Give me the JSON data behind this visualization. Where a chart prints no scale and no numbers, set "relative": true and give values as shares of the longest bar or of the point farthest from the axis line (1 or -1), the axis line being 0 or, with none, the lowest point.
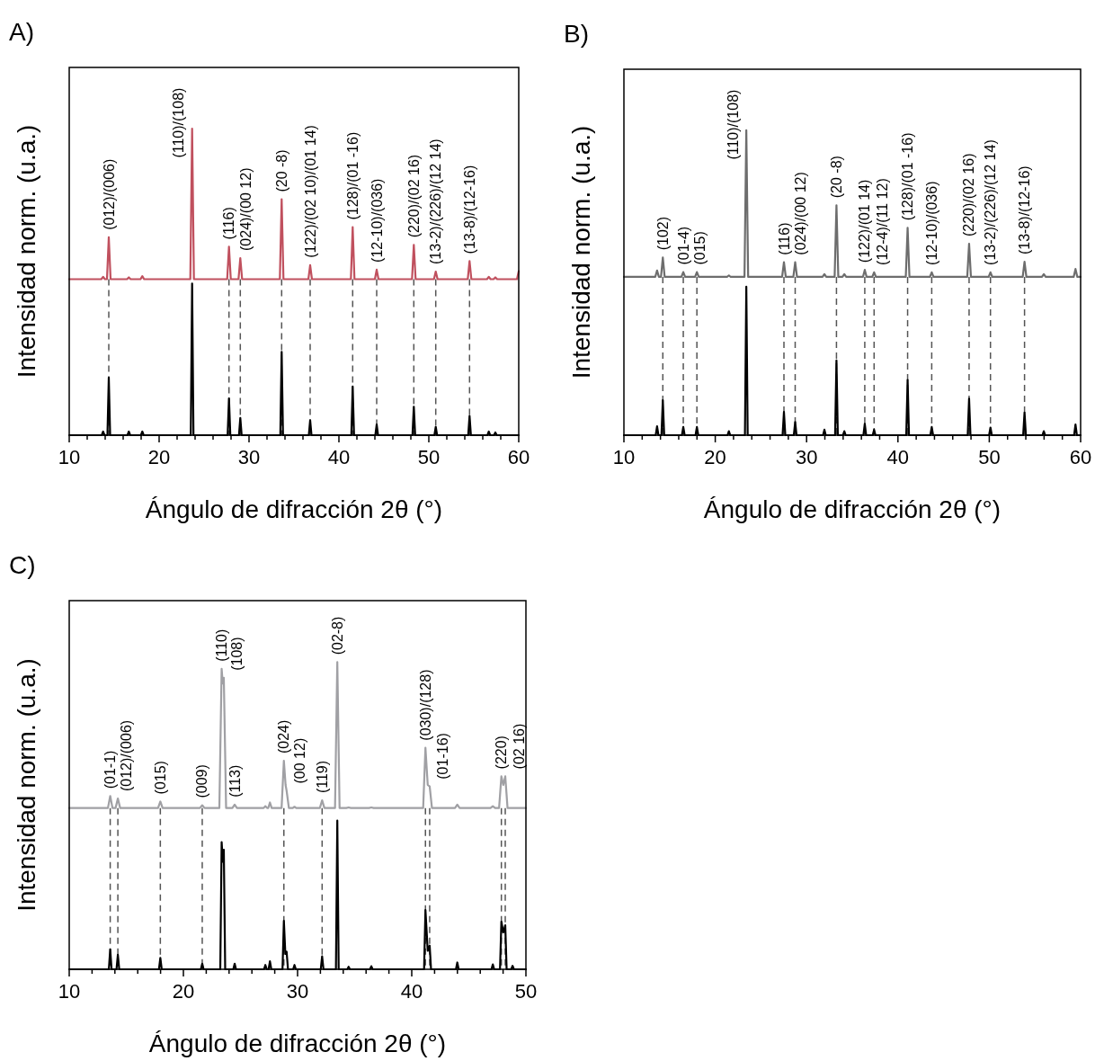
{
  "chart_data": [
    {
      "type": "line",
      "title": "A)",
      "xlabel": "Ángulo de difracción 2θ (°)",
      "ylabel": "Intensidad norm. (u.a.)",
      "relative": true,
      "xlim": [
        10,
        60
      ],
      "xticks": [
        10,
        {
          "value": 12,
          "label": null
        },
        {
          "value": 14,
          "label": null
        },
        {
          "value": 16,
          "label": null
        },
        {
          "value": 18,
          "label": null
        },
        20,
        {
          "value": 22,
          "label": null
        },
        {
          "value": 24,
          "label": null
        },
        {
          "value": 26,
          "label": null
        },
        {
          "value": 28,
          "label": null
        },
        30,
        {
          "value": 32,
          "label": null
        },
        {
          "value": 34,
          "label": null
        },
        {
          "value": 36,
          "label": null
        },
        {
          "value": 38,
          "label": null
        },
        40,
        {
          "value": 42,
          "label": null
        },
        {
          "value": 44,
          "label": null
        },
        {
          "value": 46,
          "label": null
        },
        {
          "value": 48,
          "label": null
        },
        50,
        {
          "value": 52,
          "label": null
        },
        {
          "value": 54,
          "label": null
        },
        {
          "value": 56,
          "label": null
        },
        {
          "value": 58,
          "label": null
        },
        60
      ],
      "series": [
        {
          "color": "#c0505e",
          "x": [
            10,
            13.57,
            13.77,
            13.97,
            14.2,
            14.4,
            14.6,
            16.43,
            16.63,
            16.83,
            17.93,
            18.13,
            18.33,
            23.47,
            23.67,
            23.87,
            27.57,
            27.77,
            27.97,
            28.83,
            29.03,
            29.23,
            33.43,
            33.63,
            33.83,
            36.6,
            36.8,
            37.0,
            41.33,
            41.53,
            41.73,
            44.0,
            44.2,
            44.4,
            48.13,
            48.33,
            48.53,
            50.57,
            50.77,
            50.97,
            54.33,
            54.53,
            54.73,
            56.47,
            56.67,
            56.87,
            57.2,
            57.4,
            57.6,
            59.8,
            60
          ],
          "values": [
            0.509,
            0.509,
            0.517,
            0.509,
            0.509,
            0.646,
            0.509,
            0.509,
            0.515,
            0.509,
            0.509,
            0.519,
            0.509,
            0.509,
            1,
            0.509,
            0.509,
            0.615,
            0.509,
            0.509,
            0.578,
            0.509,
            0.509,
            0.77,
            0.509,
            0.509,
            0.555,
            0.509,
            0.509,
            0.679,
            0.509,
            0.509,
            0.54,
            0.509,
            0.509,
            0.621,
            0.509,
            0.509,
            0.534,
            0.509,
            0.509,
            0.568,
            0.509,
            0.509,
            0.517,
            0.509,
            0.509,
            0.515,
            0.509,
            0.509,
            0.535
          ]
        },
        {
          "color": "#000000",
          "x": [
            10,
            13.62,
            13.77,
            13.92,
            14.25,
            14.4,
            14.55,
            16.48,
            16.63,
            16.78,
            17.98,
            18.13,
            18.28,
            23.52,
            23.67,
            23.82,
            27.62,
            27.77,
            27.92,
            28.88,
            29.03,
            29.18,
            33.48,
            33.63,
            33.78,
            36.65,
            36.8,
            36.95,
            41.38,
            41.53,
            41.68,
            44.05,
            44.2,
            44.35,
            48.18,
            48.33,
            48.48,
            50.62,
            50.77,
            50.92,
            54.38,
            54.53,
            54.68,
            56.52,
            56.67,
            56.82,
            57.25,
            57.4,
            57.55,
            60
          ],
          "values": [
            0,
            0,
            0.012,
            0,
            0,
            0.188,
            0,
            0,
            0.012,
            0,
            0,
            0.012,
            0,
            0,
            0.495,
            0,
            0,
            0.12,
            0,
            0,
            0.056,
            0,
            0,
            0.272,
            0,
            0,
            0.049,
            0,
            0,
            0.159,
            0,
            0,
            0.035,
            0,
            0,
            0.093,
            0,
            0,
            0.027,
            0,
            0,
            0.063,
            0,
            0,
            0.012,
            0,
            0,
            0.009,
            0,
            0
          ]
        }
      ],
      "ref_lines": [
        {
          "axis": "x",
          "value": 14.4,
          "line_style": "dashed",
          "color": "#555555"
        },
        {
          "axis": "x",
          "value": 27.77,
          "line_style": "dashed",
          "color": "#555555"
        },
        {
          "axis": "x",
          "value": 29.03,
          "line_style": "dashed",
          "color": "#555555"
        },
        {
          "axis": "x",
          "value": 33.63,
          "line_style": "dashed",
          "color": "#555555"
        },
        {
          "axis": "x",
          "value": 36.8,
          "line_style": "dashed",
          "color": "#555555"
        },
        {
          "axis": "x",
          "value": 41.53,
          "line_style": "dashed",
          "color": "#555555"
        },
        {
          "axis": "x",
          "value": 44.2,
          "line_style": "dashed",
          "color": "#555555"
        },
        {
          "axis": "x",
          "value": 48.33,
          "line_style": "dashed",
          "color": "#555555"
        },
        {
          "axis": "x",
          "value": 50.77,
          "line_style": "dashed",
          "color": "#555555"
        },
        {
          "axis": "x",
          "value": 54.53,
          "line_style": "dashed",
          "color": "#555555"
        }
      ],
      "annotations": [
        {
          "text": "(012)/(006)",
          "x": 14.4,
          "y": 0.646
        },
        {
          "text": "(110)/(108)",
          "x": 23.67,
          "y": 1
        },
        {
          "text": "(116)",
          "x": 27.77,
          "y": 0.615
        },
        {
          "text": "(024)/(00 12)",
          "x": 29.03,
          "y": 0.578
        },
        {
          "text": "(20 -8)",
          "x": 33.63,
          "y": 0.77
        },
        {
          "text": "(122)/(02 10)/(01 14)",
          "x": 36.8,
          "y": 0.555
        },
        {
          "text": "(128)/(01 -16)",
          "x": 41.53,
          "y": 0.679
        },
        {
          "text": "(12-10)/(036)",
          "x": 44.2,
          "y": 0.54
        },
        {
          "text": "(220)/(02 16)",
          "x": 48.33,
          "y": 0.621
        },
        {
          "text": "(13-2)/(226)/(12 14)",
          "x": 50.77,
          "y": 0.534
        },
        {
          "text": "(13-8)/(12-16)",
          "x": 54.53,
          "y": 0.568
        }
      ]
    },
    {
      "type": "line",
      "title": "B)",
      "xlabel": "Ángulo de difracción 2θ (°)",
      "ylabel": "Intensidad norm. (u.a.)",
      "relative": true,
      "xlim": [
        10,
        60
      ],
      "xticks": [
        10,
        {
          "value": 12,
          "label": null
        },
        {
          "value": 14,
          "label": null
        },
        {
          "value": 16,
          "label": null
        },
        {
          "value": 18,
          "label": null
        },
        20,
        {
          "value": 22,
          "label": null
        },
        {
          "value": 24,
          "label": null
        },
        {
          "value": 26,
          "label": null
        },
        {
          "value": 28,
          "label": null
        },
        30,
        {
          "value": 32,
          "label": null
        },
        {
          "value": 34,
          "label": null
        },
        {
          "value": 36,
          "label": null
        },
        {
          "value": 38,
          "label": null
        },
        40,
        {
          "value": 42,
          "label": null
        },
        {
          "value": 44,
          "label": null
        },
        {
          "value": 46,
          "label": null
        },
        {
          "value": 48,
          "label": null
        },
        50,
        {
          "value": 52,
          "label": null
        },
        {
          "value": 54,
          "label": null
        },
        {
          "value": 56,
          "label": null
        },
        {
          "value": 58,
          "label": null
        },
        60
      ],
      "series": [
        {
          "color": "#6d6d6d",
          "x": [
            10,
            13.43,
            13.63,
            13.83,
            14.06,
            14.26,
            14.46,
            16.3,
            16.5,
            16.7,
            17.79,
            17.99,
            18.19,
            21.29,
            21.49,
            21.69,
            23.2,
            23.4,
            23.6,
            27.32,
            27.52,
            27.72,
            28.55,
            28.75,
            28.95,
            31.75,
            31.95,
            32.15,
            33.07,
            33.27,
            33.47,
            33.93,
            34.13,
            34.33,
            36.17,
            36.37,
            36.57,
            37.19,
            37.39,
            37.59,
            40.86,
            41.06,
            41.26,
            43.5,
            43.7,
            43.9,
            47.59,
            47.79,
            47.99,
            49.93,
            50.13,
            50.33,
            53.66,
            53.86,
            54.06,
            55.77,
            55.97,
            56.17,
            59.24,
            59.44,
            59.64,
            60
          ],
          "values": [
            0.519,
            0.519,
            0.54,
            0.519,
            0.519,
            0.583,
            0.519,
            0.519,
            0.535,
            0.519,
            0.519,
            0.535,
            0.519,
            0.519,
            0.524,
            0.519,
            0.519,
            1,
            0.519,
            0.519,
            0.567,
            0.519,
            0.519,
            0.567,
            0.519,
            0.519,
            0.528,
            0.519,
            0.519,
            0.754,
            0.519,
            0.519,
            0.528,
            0.519,
            0.519,
            0.542,
            0.519,
            0.519,
            0.534,
            0.519,
            0.519,
            0.68,
            0.519,
            0.519,
            0.534,
            0.519,
            0.519,
            0.628,
            0.519,
            0.519,
            0.534,
            0.519,
            0.519,
            0.569,
            0.519,
            0.519,
            0.528,
            0.519,
            0.519,
            0.545,
            0.519,
            0.519
          ]
        },
        {
          "color": "#000000",
          "x": [
            10,
            13.48,
            13.63,
            13.78,
            14.11,
            14.26,
            14.41,
            16.35,
            16.5,
            16.65,
            17.84,
            17.99,
            18.14,
            21.34,
            21.49,
            21.64,
            23.25,
            23.4,
            23.55,
            27.37,
            27.52,
            27.67,
            28.6,
            28.75,
            28.9,
            31.8,
            31.95,
            32.1,
            33.12,
            33.27,
            33.42,
            33.98,
            34.13,
            34.28,
            36.22,
            36.37,
            36.52,
            37.24,
            37.39,
            37.54,
            40.91,
            41.06,
            41.21,
            43.55,
            43.7,
            43.85,
            47.64,
            47.79,
            47.94,
            49.98,
            50.13,
            50.28,
            53.71,
            53.86,
            54.01,
            55.82,
            55.97,
            56.12,
            59.29,
            59.44,
            59.59,
            60
          ],
          "values": [
            0,
            0,
            0.029,
            0,
            0,
            0.115,
            0,
            0,
            0.027,
            0,
            0,
            0.027,
            0,
            0,
            0.013,
            0,
            0,
            0.487,
            0,
            0,
            0.076,
            0,
            0,
            0.043,
            0,
            0,
            0.018,
            0,
            0,
            0.245,
            0,
            0,
            0.013,
            0,
            0,
            0.037,
            0,
            0,
            0.018,
            0,
            0,
            0.181,
            0,
            0,
            0.027,
            0,
            0,
            0.12,
            0,
            0,
            0.025,
            0,
            0,
            0.074,
            0,
            0,
            0.013,
            0,
            0,
            0.035,
            0,
            0
          ]
        }
      ],
      "ref_lines": [
        {
          "axis": "x",
          "value": 14.26,
          "line_style": "dashed",
          "color": "#555555"
        },
        {
          "axis": "x",
          "value": 16.5,
          "line_style": "dashed",
          "color": "#555555"
        },
        {
          "axis": "x",
          "value": 17.99,
          "line_style": "dashed",
          "color": "#555555"
        },
        {
          "axis": "x",
          "value": 27.52,
          "line_style": "dashed",
          "color": "#555555"
        },
        {
          "axis": "x",
          "value": 28.75,
          "line_style": "dashed",
          "color": "#555555"
        },
        {
          "axis": "x",
          "value": 33.27,
          "line_style": "dashed",
          "color": "#555555"
        },
        {
          "axis": "x",
          "value": 36.37,
          "line_style": "dashed",
          "color": "#555555"
        },
        {
          "axis": "x",
          "value": 37.39,
          "line_style": "dashed",
          "color": "#555555"
        },
        {
          "axis": "x",
          "value": 41.06,
          "line_style": "dashed",
          "color": "#555555"
        },
        {
          "axis": "x",
          "value": 43.7,
          "line_style": "dashed",
          "color": "#555555"
        },
        {
          "axis": "x",
          "value": 47.79,
          "line_style": "dashed",
          "color": "#555555"
        },
        {
          "axis": "x",
          "value": 50.13,
          "line_style": "dashed",
          "color": "#555555"
        },
        {
          "axis": "x",
          "value": 53.86,
          "line_style": "dashed",
          "color": "#555555"
        }
      ],
      "annotations": [
        {
          "text": "(102)",
          "x": 14.26,
          "y": 0.583
        },
        {
          "text": "(01-4)",
          "x": 16.5,
          "y": 0.535
        },
        {
          "text": "(015)",
          "x": 17.99,
          "y": 0.535
        },
        {
          "text": "(110)/(108)",
          "x": 23.4,
          "y": 1
        },
        {
          "text": "(116)",
          "x": 27.52,
          "y": 0.567
        },
        {
          "text": "(024)/(00 12)",
          "x": 28.75,
          "y": 0.567
        },
        {
          "text": "(20 -8)",
          "x": 33.27,
          "y": 0.754
        },
        {
          "text": "(122)/(01 14)",
          "x": 36.37,
          "y": 0.542
        },
        {
          "text": "(12-4)/(11 12)",
          "x": 37.39,
          "y": 0.534
        },
        {
          "text": "(128)/(01 -16)",
          "x": 41.06,
          "y": 0.68
        },
        {
          "text": "(12-10)/(036)",
          "x": 43.7,
          "y": 0.534
        },
        {
          "text": "(220)/(02 16)",
          "x": 47.79,
          "y": 0.628
        },
        {
          "text": "(13-2)/(226)/(12 14)",
          "x": 50.13,
          "y": 0.534
        },
        {
          "text": "(13-8)/(12-16)",
          "x": 53.86,
          "y": 0.569
        }
      ]
    },
    {
      "type": "line",
      "title": "C)",
      "xlabel": "Ángulo de difracción 2θ (°)",
      "ylabel": "Intensidad norm. (u.a.)",
      "relative": true,
      "xlim": [
        10,
        50
      ],
      "xticks": [
        10,
        {
          "value": 12,
          "label": null
        },
        {
          "value": 14,
          "label": null
        },
        {
          "value": 16,
          "label": null
        },
        {
          "value": 18,
          "label": null
        },
        20,
        {
          "value": 22,
          "label": null
        },
        {
          "value": 24,
          "label": null
        },
        {
          "value": 26,
          "label": null
        },
        {
          "value": 28,
          "label": null
        },
        30,
        {
          "value": 32,
          "label": null
        },
        {
          "value": 34,
          "label": null
        },
        {
          "value": 36,
          "label": null
        },
        {
          "value": 38,
          "label": null
        },
        40,
        {
          "value": 42,
          "label": null
        },
        {
          "value": 44,
          "label": null
        },
        {
          "value": 46,
          "label": null
        },
        {
          "value": 48,
          "label": null
        },
        50
      ],
      "series": [
        {
          "color": "#a0a0a4",
          "x": [
            10,
            13.39,
            13.59,
            13.79,
            14.06,
            14.26,
            14.46,
            17.78,
            17.98,
            18.18,
            21.45,
            21.65,
            21.85,
            23.15,
            23.35,
            23.45,
            23.54,
            23.74,
            24.29,
            24.49,
            24.69,
            27.03,
            27.18,
            27.33,
            27.43,
            27.58,
            27.73,
            28.6,
            28.8,
            28.95,
            29.04,
            29.24,
            29.58,
            29.73,
            29.88,
            31.95,
            32.15,
            32.35,
            33.28,
            33.48,
            33.68,
            34.27,
            34.47,
            34.67,
            36.26,
            36.46,
            36.66,
            41.0,
            41.2,
            41.4,
            41.57,
            41.77,
            43.79,
            43.99,
            44.19,
            46.9,
            47.1,
            47.3,
            47.65,
            47.85,
            48.02,
            48.19,
            48.39,
            50
          ],
          "values": [
            0.525,
            0.525,
            0.564,
            0.525,
            0.525,
            0.556,
            0.525,
            0.525,
            0.546,
            0.525,
            0.525,
            0.534,
            0.525,
            0.525,
            0.978,
            0.93,
            0.949,
            0.525,
            0.525,
            0.536,
            0.525,
            0.525,
            0.531,
            0.525,
            0.525,
            0.543,
            0.525,
            0.525,
            0.679,
            0.6,
            0.581,
            0.525,
            0.525,
            0.529,
            0.525,
            0.525,
            0.55,
            0.525,
            0.525,
            1,
            0.525,
            0.525,
            0.527,
            0.525,
            0.525,
            0.527,
            0.525,
            0.525,
            0.721,
            0.6,
            0.595,
            0.525,
            0.525,
            0.536,
            0.525,
            0.525,
            0.531,
            0.525,
            0.525,
            0.628,
            0.6,
            0.628,
            0.525,
            0.525
          ]
        },
        {
          "color": "#000000",
          "x": [
            10,
            13.47,
            13.59,
            13.71,
            14.14,
            14.26,
            14.38,
            17.86,
            17.98,
            18.1,
            21.53,
            21.65,
            21.77,
            23.23,
            23.35,
            23.45,
            23.54,
            23.66,
            24.37,
            24.49,
            24.61,
            27.06,
            27.18,
            27.3,
            27.46,
            27.58,
            27.7,
            28.68,
            28.8,
            28.93,
            29.04,
            29.16,
            29.61,
            29.73,
            29.85,
            32.03,
            32.15,
            32.27,
            33.36,
            33.48,
            33.6,
            34.35,
            34.47,
            34.59,
            36.34,
            36.46,
            36.58,
            41.08,
            41.2,
            41.4,
            41.57,
            41.69,
            43.87,
            43.99,
            44.11,
            46.98,
            47.1,
            47.22,
            47.73,
            47.85,
            48.02,
            48.19,
            48.31,
            48.71,
            48.83,
            48.95,
            50
          ],
          "values": [
            0,
            0,
            0.065,
            0,
            0,
            0.047,
            0,
            0,
            0.037,
            0,
            0,
            0.018,
            0,
            0,
            0.414,
            0.35,
            0.389,
            0,
            0,
            0.018,
            0,
            0,
            0.014,
            0,
            0,
            0.026,
            0,
            0,
            0.158,
            0.05,
            0.057,
            0,
            0,
            0.014,
            0,
            0,
            0.042,
            0,
            0,
            0.484,
            0,
            0,
            0.008,
            0,
            0,
            0.01,
            0,
            0,
            0.193,
            0.06,
            0.077,
            0,
            0,
            0.022,
            0,
            0,
            0.016,
            0,
            0,
            0.155,
            0.12,
            0.143,
            0,
            0,
            0.011,
            0,
            0
          ]
        }
      ],
      "ref_lines": [
        {
          "axis": "x",
          "value": 13.59,
          "line_style": "dashed",
          "color": "#555555"
        },
        {
          "axis": "x",
          "value": 14.26,
          "line_style": "dashed",
          "color": "#555555"
        },
        {
          "axis": "x",
          "value": 17.98,
          "line_style": "dashed",
          "color": "#555555"
        },
        {
          "axis": "x",
          "value": 21.65,
          "line_style": "dashed",
          "color": "#555555"
        },
        {
          "axis": "x",
          "value": 28.8,
          "line_style": "dashed",
          "color": "#555555"
        },
        {
          "axis": "x",
          "value": 32.15,
          "line_style": "dashed",
          "color": "#555555"
        },
        {
          "axis": "x",
          "value": 41.2,
          "line_style": "dashed",
          "color": "#555555"
        },
        {
          "axis": "x",
          "value": 41.57,
          "line_style": "dashed",
          "color": "#555555"
        },
        {
          "axis": "x",
          "value": 47.85,
          "line_style": "dashed",
          "color": "#555555"
        },
        {
          "axis": "x",
          "value": 48.19,
          "line_style": "dashed",
          "color": "#555555"
        }
      ],
      "annotations": [
        {
          "text": "(01-1)",
          "x": 13.59,
          "y": 0.564
        },
        {
          "text": "(012)/(006)",
          "x": 14.26,
          "y": 0.556
        },
        {
          "text": "(015)",
          "x": 17.98,
          "y": 0.546
        },
        {
          "text": "(009)",
          "x": 21.65,
          "y": 0.534
        },
        {
          "text": "(110)",
          "x": 23.35,
          "y": 0.978
        },
        {
          "text": "(108)",
          "x": 23.54,
          "y": 0.949
        },
        {
          "text": "(113)",
          "x": 24.49,
          "y": 0.536
        },
        {
          "text": "(024)",
          "x": 28.8,
          "y": 0.679
        },
        {
          "text": "(00 12)",
          "x": 29.04,
          "y": 0.581
        },
        {
          "text": "(119)",
          "x": 32.15,
          "y": 0.55
        },
        {
          "text": "(02-8)",
          "x": 33.48,
          "y": 1
        },
        {
          "text": "(030)/(128)",
          "x": 41.2,
          "y": 0.721
        },
        {
          "text": "(01-16)",
          "x": 41.57,
          "y": 0.595
        },
        {
          "text": "(220)",
          "x": 47.85,
          "y": 0.628
        },
        {
          "text": "(02 16)",
          "x": 48.19,
          "y": 0.628
        }
      ]
    }
  ]
}
